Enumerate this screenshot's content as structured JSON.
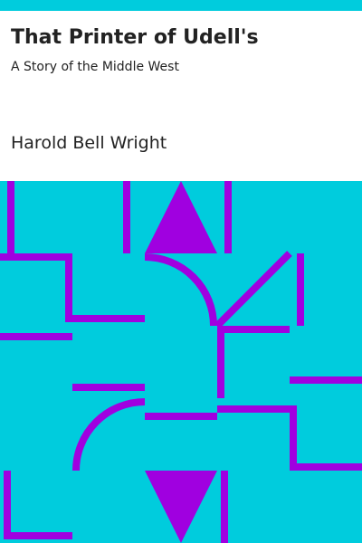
{
  "cover": {
    "title": "That Printer of Udell's",
    "subtitle": "A Story of the Middle West",
    "author": "Harold Bell Wright"
  },
  "colors": {
    "accent": "#00ccdd",
    "pattern": "#a000e0",
    "text": "#222222",
    "background": "#ffffff"
  }
}
